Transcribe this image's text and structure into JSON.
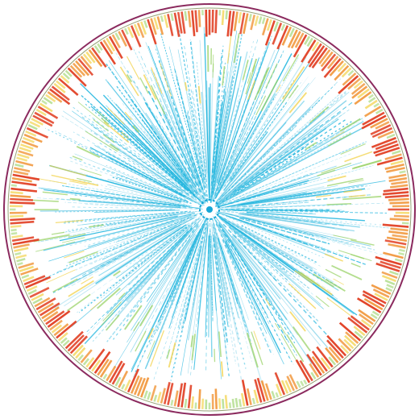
{
  "diagram": {
    "type": "circular-genome-map",
    "palette": {
      "background": "#ffffff",
      "outer_ring": "#8b2a5e",
      "inner_ring": "#6b7a3a",
      "spoke_primary": "#1fb5de",
      "spoke_secondary": "#7fd0e8",
      "heat_low": "#9bd36a",
      "heat_mid": "#f2d24a",
      "heat_high": "#f0902f",
      "heat_max": "#e2452a",
      "hub": "#16a6d6"
    },
    "icons": {
      "center_hub": "hub-dot-icon"
    }
  }
}
